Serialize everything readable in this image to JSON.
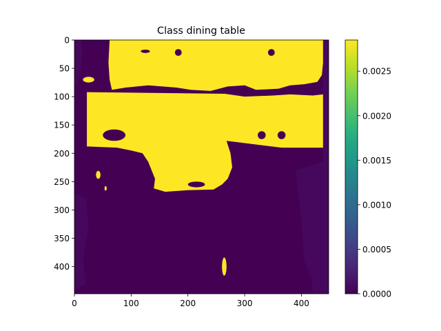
{
  "chart_data": {
    "type": "heatmap",
    "title": "Class dining table",
    "xlabel": "",
    "ylabel": "",
    "image_extent": {
      "x": [
        0,
        448
      ],
      "y": [
        448,
        0
      ]
    },
    "x_ticks": [
      0,
      100,
      200,
      300,
      400
    ],
    "y_ticks": [
      0,
      50,
      100,
      150,
      200,
      250,
      300,
      350,
      400
    ],
    "colormap": "viridis",
    "colorbar": {
      "range": [
        0.0,
        0.00285
      ],
      "ticks": [
        "0.0000",
        "0.0005",
        "0.0010",
        "0.0015",
        "0.0020",
        "0.0025"
      ],
      "tick_values": [
        0.0,
        0.0005,
        0.001,
        0.0015,
        0.002,
        0.0025
      ]
    },
    "colors": {
      "low": "#440154",
      "mid_low": "#46085c",
      "high": "#fde725",
      "mid": "#21918c"
    },
    "regions_high": [
      {
        "shape": "polygon",
        "points": [
          [
            62,
            0
          ],
          [
            438,
            0
          ],
          [
            438,
            40
          ],
          [
            436,
            62
          ],
          [
            428,
            74
          ],
          [
            405,
            78
          ],
          [
            380,
            80
          ],
          [
            360,
            86
          ],
          [
            320,
            88
          ],
          [
            300,
            80
          ],
          [
            270,
            82
          ],
          [
            240,
            90
          ],
          [
            205,
            88
          ],
          [
            180,
            84
          ],
          [
            130,
            80
          ],
          [
            90,
            84
          ],
          [
            66,
            88
          ],
          [
            62,
            70
          ],
          [
            60,
            40
          ]
        ]
      },
      {
        "shape": "polygon",
        "points": [
          [
            22,
            92
          ],
          [
            265,
            95
          ],
          [
            300,
            100
          ],
          [
            350,
            98
          ],
          [
            380,
            96
          ],
          [
            420,
            98
          ],
          [
            438,
            96
          ],
          [
            438,
            190
          ],
          [
            365,
            190
          ],
          [
            300,
            182
          ],
          [
            268,
            178
          ],
          [
            275,
            200
          ],
          [
            278,
            225
          ],
          [
            270,
            245
          ],
          [
            260,
            255
          ],
          [
            245,
            264
          ],
          [
            200,
            265
          ],
          [
            160,
            268
          ],
          [
            140,
            262
          ],
          [
            142,
            245
          ],
          [
            130,
            215
          ],
          [
            120,
            200
          ],
          [
            100,
            195
          ],
          [
            75,
            190
          ],
          [
            22,
            188
          ],
          [
            22,
            150
          ]
        ]
      },
      {
        "shape": "ellipse",
        "cx": 25,
        "cy": 70,
        "rx": 10,
        "ry": 5
      },
      {
        "shape": "ellipse",
        "cx": 42,
        "cy": 238,
        "rx": 4,
        "ry": 7
      },
      {
        "shape": "ellipse",
        "cx": 55,
        "cy": 262,
        "rx": 2,
        "ry": 4
      },
      {
        "shape": "ellipse",
        "cx": 264,
        "cy": 400,
        "rx": 4,
        "ry": 16
      }
    ],
    "regions_low": [
      {
        "shape": "ellipse",
        "cx": 183,
        "cy": 22,
        "rx": 6,
        "ry": 6
      },
      {
        "shape": "ellipse",
        "cx": 347,
        "cy": 22,
        "rx": 6,
        "ry": 6
      },
      {
        "shape": "ellipse",
        "cx": 125,
        "cy": 20,
        "rx": 8,
        "ry": 3
      },
      {
        "shape": "ellipse",
        "cx": 330,
        "cy": 168,
        "rx": 7,
        "ry": 7
      },
      {
        "shape": "ellipse",
        "cx": 365,
        "cy": 168,
        "rx": 7,
        "ry": 7
      },
      {
        "shape": "ellipse",
        "cx": 70,
        "cy": 168,
        "rx": 20,
        "ry": 10
      },
      {
        "shape": "ellipse",
        "cx": 215,
        "cy": 255,
        "rx": 15,
        "ry": 5
      }
    ],
    "regions_mid_low": [
      {
        "shape": "polygon",
        "points": [
          [
            418,
            0
          ],
          [
            448,
            0
          ],
          [
            448,
            448
          ],
          [
            420,
            448
          ],
          [
            418,
            420
          ],
          [
            405,
            390
          ],
          [
            400,
            320
          ],
          [
            395,
            270
          ],
          [
            390,
            230
          ],
          [
            438,
            215
          ],
          [
            436,
            140
          ],
          [
            438,
            70
          ]
        ]
      },
      {
        "shape": "polygon",
        "points": [
          [
            0,
            270
          ],
          [
            20,
            280
          ],
          [
            25,
            330
          ],
          [
            15,
            390
          ],
          [
            20,
            430
          ],
          [
            0,
            440
          ]
        ]
      },
      {
        "shape": "polygon",
        "points": [
          [
            0,
            0
          ],
          [
            12,
            0
          ],
          [
            14,
            20
          ],
          [
            10,
            60
          ],
          [
            5,
            80
          ],
          [
            0,
            82
          ]
        ]
      }
    ]
  }
}
